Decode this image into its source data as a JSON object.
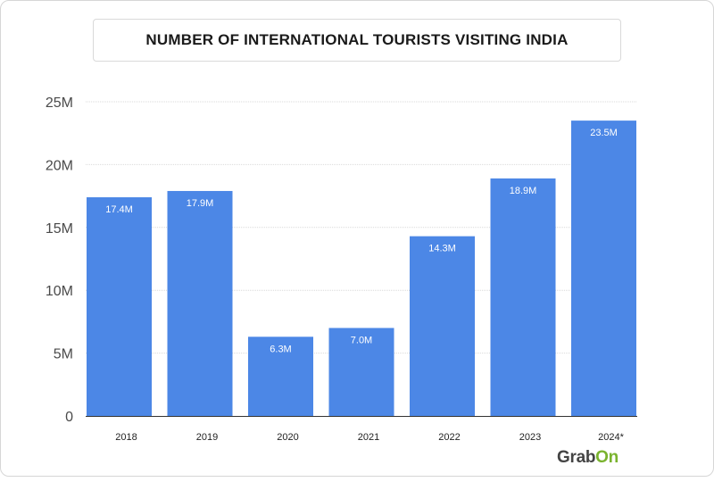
{
  "chart_data": {
    "type": "bar",
    "title": "NUMBER OF INTERNATIONAL TOURISTS VISITING INDIA",
    "categories": [
      "2018",
      "2019",
      "2020",
      "2021",
      "2022",
      "2023",
      "2024*"
    ],
    "values": [
      17.4,
      17.9,
      6.3,
      7.0,
      14.3,
      18.9,
      23.5
    ],
    "data_labels": [
      "17.4M",
      "17.9M",
      "6.3M",
      "7.0M",
      "14.3M",
      "18.9M",
      "23.5M"
    ],
    "ylim": [
      0,
      25
    ],
    "y_ticks": [
      {
        "value": 0,
        "label": "0"
      },
      {
        "value": 5,
        "label": "5M"
      },
      {
        "value": 10,
        "label": "10M"
      },
      {
        "value": 15,
        "label": "15M"
      },
      {
        "value": 20,
        "label": "20M"
      },
      {
        "value": 25,
        "label": "25M"
      }
    ],
    "xlabel": "",
    "ylabel": "",
    "grid": true,
    "bar_color": "#4c87e6",
    "grid_color": "#d9d9d9"
  },
  "brand": {
    "logo_prefix": "Grab",
    "logo_suffix": "On",
    "accent_color": "#7ab32e"
  }
}
